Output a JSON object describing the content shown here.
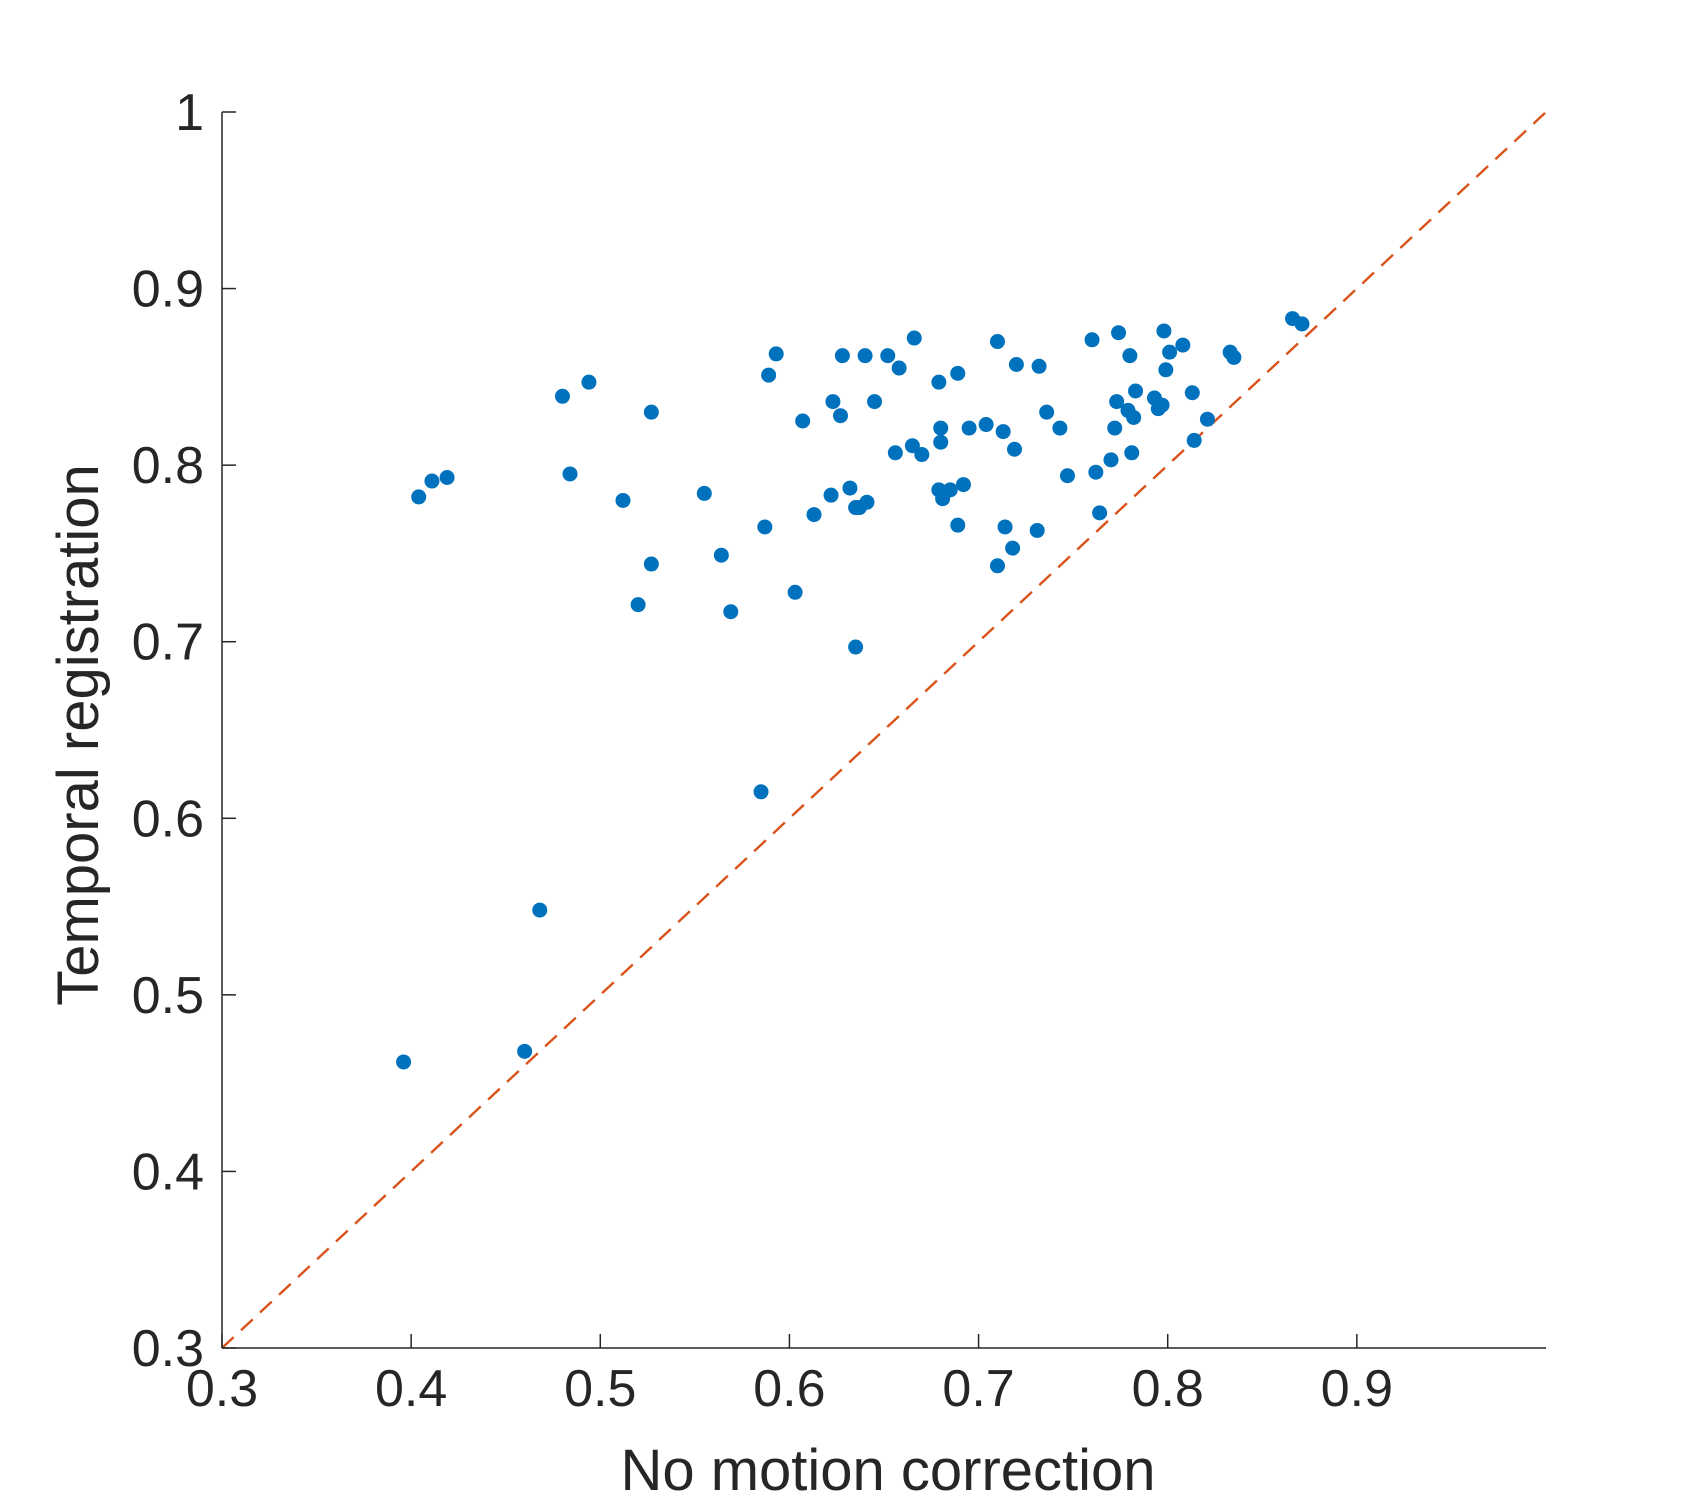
{
  "chart_data": {
    "type": "scatter",
    "xlabel": "No motion correction",
    "ylabel": "Temporal registration",
    "xlim": [
      0.3,
      1.0
    ],
    "ylim": [
      0.3,
      1.0
    ],
    "xticks": [
      "0.3",
      "0.4",
      "0.5",
      "0.6",
      "0.7",
      "0.8",
      "0.9"
    ],
    "xtick_values": [
      0.3,
      0.4,
      0.5,
      0.6,
      0.7,
      0.8,
      0.9
    ],
    "yticks": [
      "0.3",
      "0.4",
      "0.5",
      "0.6",
      "0.7",
      "0.8",
      "0.9",
      "1"
    ],
    "ytick_values": [
      0.3,
      0.4,
      0.5,
      0.6,
      0.7,
      0.8,
      0.9,
      1.0
    ],
    "grid": false,
    "reference_line": {
      "style": "dashed",
      "from": [
        0.3,
        0.3
      ],
      "to": [
        1.0,
        1.0
      ],
      "color": "#D95319"
    },
    "marker_color": "#0072BD",
    "series": [
      {
        "points": [
          [
            0.396,
            0.462
          ],
          [
            0.46,
            0.468
          ],
          [
            0.468,
            0.548
          ],
          [
            0.585,
            0.615
          ],
          [
            0.635,
            0.697
          ],
          [
            0.404,
            0.782
          ],
          [
            0.411,
            0.791
          ],
          [
            0.419,
            0.793
          ],
          [
            0.48,
            0.839
          ],
          [
            0.484,
            0.795
          ],
          [
            0.494,
            0.847
          ],
          [
            0.512,
            0.78
          ],
          [
            0.52,
            0.721
          ],
          [
            0.527,
            0.83
          ],
          [
            0.527,
            0.744
          ],
          [
            0.555,
            0.784
          ],
          [
            0.564,
            0.749
          ],
          [
            0.569,
            0.717
          ],
          [
            0.587,
            0.765
          ],
          [
            0.589,
            0.851
          ],
          [
            0.593,
            0.863
          ],
          [
            0.603,
            0.728
          ],
          [
            0.607,
            0.825
          ],
          [
            0.613,
            0.772
          ],
          [
            0.622,
            0.783
          ],
          [
            0.623,
            0.836
          ],
          [
            0.627,
            0.828
          ],
          [
            0.628,
            0.862
          ],
          [
            0.632,
            0.787
          ],
          [
            0.635,
            0.776
          ],
          [
            0.637,
            0.776
          ],
          [
            0.64,
            0.862
          ],
          [
            0.641,
            0.779
          ],
          [
            0.645,
            0.836
          ],
          [
            0.652,
            0.862
          ],
          [
            0.656,
            0.807
          ],
          [
            0.658,
            0.855
          ],
          [
            0.665,
            0.811
          ],
          [
            0.666,
            0.872
          ],
          [
            0.67,
            0.806
          ],
          [
            0.679,
            0.847
          ],
          [
            0.679,
            0.786
          ],
          [
            0.68,
            0.813
          ],
          [
            0.68,
            0.821
          ],
          [
            0.681,
            0.781
          ],
          [
            0.685,
            0.786
          ],
          [
            0.689,
            0.852
          ],
          [
            0.689,
            0.766
          ],
          [
            0.692,
            0.789
          ],
          [
            0.695,
            0.821
          ],
          [
            0.704,
            0.823
          ],
          [
            0.71,
            0.87
          ],
          [
            0.71,
            0.743
          ],
          [
            0.713,
            0.819
          ],
          [
            0.714,
            0.765
          ],
          [
            0.718,
            0.753
          ],
          [
            0.719,
            0.809
          ],
          [
            0.72,
            0.857
          ],
          [
            0.731,
            0.763
          ],
          [
            0.732,
            0.856
          ],
          [
            0.736,
            0.83
          ],
          [
            0.743,
            0.821
          ],
          [
            0.747,
            0.794
          ],
          [
            0.76,
            0.871
          ],
          [
            0.762,
            0.796
          ],
          [
            0.764,
            0.773
          ],
          [
            0.77,
            0.803
          ],
          [
            0.772,
            0.821
          ],
          [
            0.773,
            0.836
          ],
          [
            0.774,
            0.875
          ],
          [
            0.779,
            0.831
          ],
          [
            0.78,
            0.862
          ],
          [
            0.781,
            0.807
          ],
          [
            0.782,
            0.827
          ],
          [
            0.783,
            0.842
          ],
          [
            0.793,
            0.838
          ],
          [
            0.795,
            0.832
          ],
          [
            0.797,
            0.834
          ],
          [
            0.798,
            0.876
          ],
          [
            0.799,
            0.854
          ],
          [
            0.801,
            0.864
          ],
          [
            0.808,
            0.868
          ],
          [
            0.813,
            0.841
          ],
          [
            0.814,
            0.814
          ],
          [
            0.821,
            0.826
          ],
          [
            0.833,
            0.864
          ],
          [
            0.835,
            0.861
          ],
          [
            0.866,
            0.883
          ],
          [
            0.871,
            0.88
          ]
        ]
      }
    ]
  }
}
